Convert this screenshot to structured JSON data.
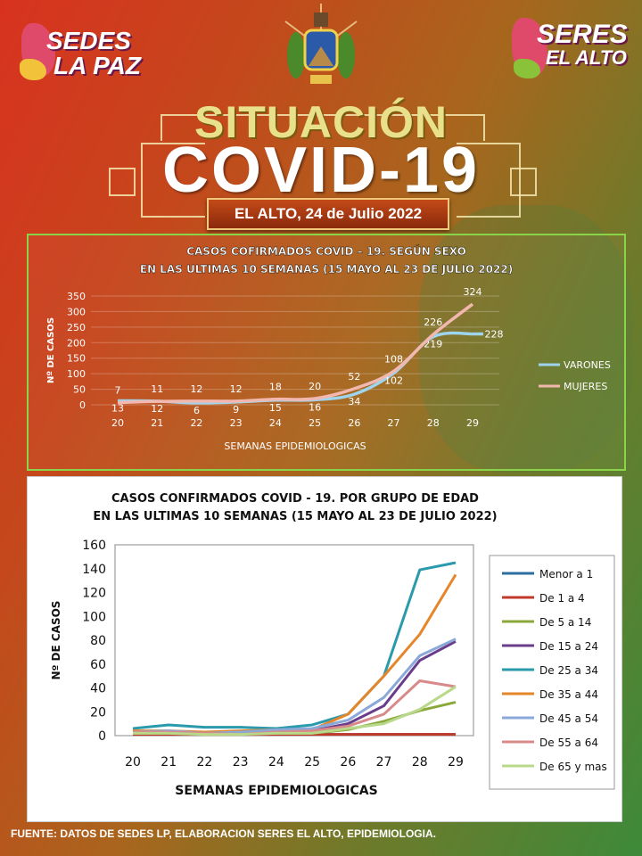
{
  "header": {
    "logo_left_line1": "SEDES",
    "logo_left_line2": "LA PAZ",
    "logo_right_line1": "SERES",
    "logo_right_line2": "EL ALTO",
    "title_line1": "SITUACIÓN",
    "title_line2": "COVID-19",
    "date": "EL ALTO, 24 de Julio 2022"
  },
  "footer": "FUENTE: DATOS DE SEDES LP, ELABORACION SERES EL ALTO, EPIDEMIOLOGIA.",
  "colors": {
    "varones": "#9ed4ec",
    "mujeres": "#f2b8b0",
    "panel_border": "#8ad44a"
  },
  "chart_data": [
    {
      "type": "line",
      "title": "CASOS COFIRMADOS COVID – 19. SEGÚN SEXO",
      "subtitle": "EN LAS ULTIMAS 10 SEMANAS (15 MAYO AL 23 DE JULIO 2022)",
      "xlabel": "SEMANAS EPIDEMIOLOGICAS",
      "ylabel": "Nº DE CASOS",
      "ylim": [
        0,
        350
      ],
      "yticks": [
        0,
        50,
        100,
        150,
        200,
        250,
        300,
        350
      ],
      "categories": [
        "20",
        "21",
        "22",
        "23",
        "24",
        "25",
        "26",
        "27",
        "28",
        "29"
      ],
      "legend": "right",
      "series": [
        {
          "name": "VARONES",
          "values": [
            13,
            12,
            6,
            9,
            15,
            16,
            34,
            102,
            219,
            228
          ]
        },
        {
          "name": "MUJERES",
          "values": [
            7,
            11,
            12,
            12,
            18,
            20,
            52,
            108,
            226,
            324
          ]
        }
      ]
    },
    {
      "type": "line",
      "title": "CASOS CONFIRMADOS COVID - 19. POR GRUPO DE EDAD",
      "subtitle": "EN LAS ULTIMAS 10 SEMANAS (15 MAYO AL 23 DE JULIO 2022)",
      "xlabel": "SEMANAS EPIDEMIOLOGICAS",
      "ylabel": "Nº DE CASOS",
      "ylim": [
        0,
        160
      ],
      "yticks": [
        0,
        20,
        40,
        60,
        80,
        100,
        120,
        140,
        160
      ],
      "categories": [
        "20",
        "21",
        "22",
        "23",
        "24",
        "25",
        "26",
        "27",
        "28",
        "29"
      ],
      "legend": "right",
      "series": [
        {
          "name": "Menor a 1",
          "color": "#2e6e9e",
          "values": [
            1,
            1,
            1,
            1,
            1,
            1,
            1,
            1,
            1,
            1
          ]
        },
        {
          "name": "De 1 a 4",
          "color": "#c0392b",
          "values": [
            1,
            1,
            1,
            1,
            1,
            1,
            1,
            1,
            1,
            1
          ]
        },
        {
          "name": "De 5 a 14",
          "color": "#8aa83a",
          "values": [
            2,
            2,
            1,
            2,
            2,
            2,
            5,
            12,
            21,
            28
          ]
        },
        {
          "name": "De 15 a 24",
          "color": "#6a3d8a",
          "values": [
            3,
            3,
            2,
            2,
            4,
            4,
            10,
            25,
            63,
            79
          ]
        },
        {
          "name": "De 25 a 34",
          "color": "#2a9aac",
          "values": [
            6,
            9,
            7,
            7,
            6,
            9,
            18,
            50,
            139,
            145
          ]
        },
        {
          "name": "De 35 a 44",
          "color": "#e6862a",
          "values": [
            4,
            4,
            3,
            4,
            5,
            5,
            18,
            50,
            85,
            135
          ]
        },
        {
          "name": "De 45 a 54",
          "color": "#8aa8d8",
          "values": [
            3,
            4,
            2,
            3,
            5,
            6,
            13,
            32,
            67,
            81
          ]
        },
        {
          "name": "De 55 a 64",
          "color": "#d88a8a",
          "values": [
            3,
            3,
            2,
            1,
            3,
            4,
            8,
            18,
            46,
            41
          ]
        },
        {
          "name": "De 65 y mas",
          "color": "#b8d88a",
          "values": [
            2,
            2,
            1,
            1,
            2,
            2,
            6,
            10,
            22,
            41
          ]
        }
      ]
    }
  ]
}
